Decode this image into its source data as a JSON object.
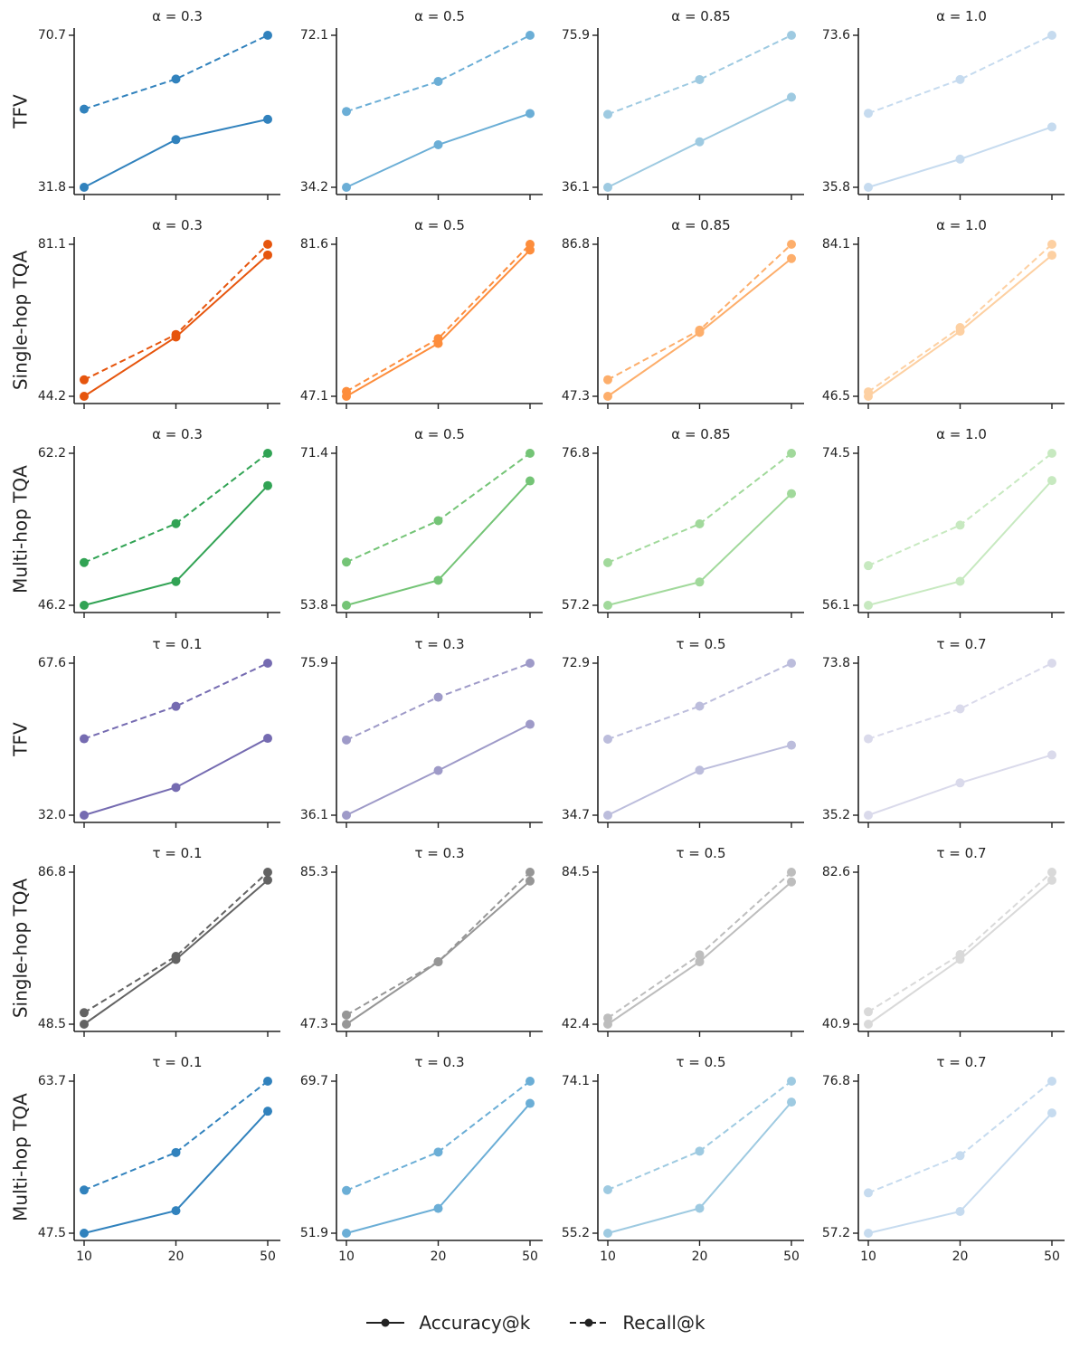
{
  "chart_data": {
    "type": "line",
    "layout": "6x4 grid of small multiples",
    "x_categories": [
      "10",
      "20",
      "50"
    ],
    "series_names": [
      "Accuracy@k",
      "Recall@k"
    ],
    "legend": {
      "position": "bottom-center",
      "items": [
        {
          "label": "Accuracy@k",
          "style": "solid"
        },
        {
          "label": "Recall@k",
          "style": "dashed"
        }
      ]
    },
    "rows": [
      {
        "label": "TFV",
        "param": "alpha",
        "panels": [
          {
            "title": "α = 0.3",
            "color": "#3182bd",
            "ytick_min": "31.8",
            "ytick_max": "70.7",
            "ylim": [
              31.8,
              70.7
            ],
            "accuracy": [
              31.8,
              44.0,
              49.2
            ],
            "recall": [
              51.8,
              59.5,
              70.7
            ]
          },
          {
            "title": "α = 0.5",
            "color": "#6baed6",
            "ytick_min": "34.2",
            "ytick_max": "72.1",
            "ylim": [
              34.2,
              72.1
            ],
            "accuracy": [
              34.2,
              44.8,
              52.6
            ],
            "recall": [
              53.1,
              60.6,
              72.1
            ]
          },
          {
            "title": "α = 0.85",
            "color": "#9ecae1",
            "ytick_min": "36.1",
            "ytick_max": "75.9",
            "ylim": [
              36.1,
              75.9
            ],
            "accuracy": [
              36.1,
              48.0,
              59.7
            ],
            "recall": [
              55.2,
              64.3,
              75.9
            ]
          },
          {
            "title": "α = 1.0",
            "color": "#c6dbef",
            "ytick_min": "35.8",
            "ytick_max": "73.6",
            "ylim": [
              35.8,
              73.6
            ],
            "accuracy": [
              35.8,
              42.8,
              50.8
            ],
            "recall": [
              54.2,
              62.6,
              73.6
            ]
          }
        ]
      },
      {
        "label": "Single-hop TQA",
        "param": "alpha",
        "panels": [
          {
            "title": "α = 0.3",
            "color": "#e6550d",
            "ytick_min": "44.2",
            "ytick_max": "81.1",
            "ylim": [
              44.2,
              81.1
            ],
            "accuracy": [
              44.2,
              58.6,
              78.5
            ],
            "recall": [
              48.2,
              59.2,
              81.1
            ]
          },
          {
            "title": "α = 0.5",
            "color": "#fd8d3c",
            "ytick_min": "47.1",
            "ytick_max": "81.6",
            "ylim": [
              47.1,
              81.6
            ],
            "accuracy": [
              47.1,
              59.1,
              80.3
            ],
            "recall": [
              48.2,
              60.2,
              81.6
            ]
          },
          {
            "title": "α = 0.85",
            "color": "#fdae6b",
            "ytick_min": "47.3",
            "ytick_max": "86.8",
            "ylim": [
              47.3,
              86.8
            ],
            "accuracy": [
              47.3,
              63.9,
              83.1
            ],
            "recall": [
              51.6,
              64.5,
              86.8
            ]
          },
          {
            "title": "α = 1.0",
            "color": "#fdd0a2",
            "ytick_min": "46.5",
            "ytick_max": "84.1",
            "ylim": [
              46.5,
              84.1
            ],
            "accuracy": [
              46.5,
              62.6,
              81.4
            ],
            "recall": [
              47.6,
              63.5,
              84.1
            ]
          }
        ]
      },
      {
        "label": "Multi-hop TQA",
        "param": "alpha",
        "panels": [
          {
            "title": "α = 0.3",
            "color": "#31a354",
            "ytick_min": "46.2",
            "ytick_max": "62.2",
            "ylim": [
              46.2,
              62.2
            ],
            "accuracy": [
              46.2,
              48.7,
              58.8
            ],
            "recall": [
              50.7,
              54.8,
              62.2
            ]
          },
          {
            "title": "α = 0.5",
            "color": "#74c476",
            "ytick_min": "53.8",
            "ytick_max": "71.4",
            "ylim": [
              53.8,
              71.4
            ],
            "accuracy": [
              53.8,
              56.7,
              68.2
            ],
            "recall": [
              58.8,
              63.6,
              71.4
            ]
          },
          {
            "title": "α = 0.85",
            "color": "#a1d99b",
            "ytick_min": "57.2",
            "ytick_max": "76.8",
            "ylim": [
              57.2,
              76.8
            ],
            "accuracy": [
              57.2,
              60.2,
              71.6
            ],
            "recall": [
              62.7,
              67.7,
              76.8
            ]
          },
          {
            "title": "α = 1.0",
            "color": "#c7e9c0",
            "ytick_min": "56.1",
            "ytick_max": "74.5",
            "ylim": [
              56.1,
              74.5
            ],
            "accuracy": [
              56.1,
              59.0,
              71.2
            ],
            "recall": [
              60.9,
              65.8,
              74.5
            ]
          }
        ]
      },
      {
        "label": "TFV",
        "param": "tau",
        "panels": [
          {
            "title": "τ = 0.1",
            "color": "#756bb1",
            "ytick_min": "32.0",
            "ytick_max": "67.6",
            "ylim": [
              32.0,
              67.6
            ],
            "accuracy": [
              32.0,
              38.5,
              50.0
            ],
            "recall": [
              49.9,
              57.5,
              67.6
            ]
          },
          {
            "title": "τ = 0.3",
            "color": "#9e9ac8",
            "ytick_min": "36.1",
            "ytick_max": "75.9",
            "ylim": [
              36.1,
              75.9
            ],
            "accuracy": [
              36.1,
              47.8,
              59.9
            ],
            "recall": [
              55.8,
              67.0,
              75.9
            ]
          },
          {
            "title": "τ = 0.5",
            "color": "#bcbddc",
            "ytick_min": "34.7",
            "ytick_max": "72.9",
            "ylim": [
              34.7,
              72.9
            ],
            "accuracy": [
              34.7,
              46.0,
              52.3
            ],
            "recall": [
              53.8,
              62.1,
              72.9
            ]
          },
          {
            "title": "τ = 0.7",
            "color": "#dadaeb",
            "ytick_min": "35.2",
            "ytick_max": "73.8",
            "ylim": [
              35.2,
              73.8
            ],
            "accuracy": [
              35.2,
              43.4,
              50.5
            ],
            "recall": [
              54.6,
              62.2,
              73.8
            ]
          }
        ]
      },
      {
        "label": "Single-hop TQA",
        "param": "tau",
        "panels": [
          {
            "title": "τ = 0.1",
            "color": "#636363",
            "ytick_min": "48.5",
            "ytick_max": "86.8",
            "ylim": [
              48.5,
              86.8
            ],
            "accuracy": [
              48.5,
              64.8,
              84.8
            ],
            "recall": [
              51.4,
              65.6,
              86.8
            ]
          },
          {
            "title": "τ = 0.3",
            "color": "#969696",
            "ytick_min": "47.3",
            "ytick_max": "85.3",
            "ylim": [
              47.3,
              85.3
            ],
            "accuracy": [
              47.3,
              62.9,
              83.1
            ],
            "recall": [
              49.6,
              62.9,
              85.3
            ]
          },
          {
            "title": "τ = 0.5",
            "color": "#bdbdbd",
            "ytick_min": "42.4",
            "ytick_max": "84.5",
            "ylim": [
              42.4,
              84.5
            ],
            "accuracy": [
              42.4,
              59.7,
              81.8
            ],
            "recall": [
              44.1,
              61.6,
              84.5
            ]
          },
          {
            "title": "τ = 0.7",
            "color": "#d9d9d9",
            "ytick_min": "40.9",
            "ytick_max": "82.6",
            "ylim": [
              40.9,
              82.6
            ],
            "accuracy": [
              40.9,
              58.7,
              80.4
            ],
            "recall": [
              44.3,
              60.0,
              82.6
            ]
          }
        ]
      },
      {
        "label": "Multi-hop TQA",
        "param": "tau",
        "panels": [
          {
            "title": "τ = 0.1",
            "color": "#3182bd",
            "ytick_min": "47.5",
            "ytick_max": "63.7",
            "ylim": [
              47.5,
              63.7
            ],
            "accuracy": [
              47.5,
              49.9,
              60.5
            ],
            "recall": [
              52.1,
              56.1,
              63.7
            ]
          },
          {
            "title": "τ = 0.3",
            "color": "#6baed6",
            "ytick_min": "51.9",
            "ytick_max": "69.7",
            "ylim": [
              51.9,
              69.7
            ],
            "accuracy": [
              51.9,
              54.8,
              67.1
            ],
            "recall": [
              56.9,
              61.4,
              69.7
            ]
          },
          {
            "title": "τ = 0.5",
            "color": "#9ecae1",
            "ytick_min": "55.2",
            "ytick_max": "74.1",
            "ylim": [
              55.2,
              74.1
            ],
            "accuracy": [
              55.2,
              58.3,
              71.5
            ],
            "recall": [
              60.6,
              65.4,
              74.1
            ]
          },
          {
            "title": "τ = 0.7",
            "color": "#c6dbef",
            "ytick_min": "57.2",
            "ytick_max": "76.8",
            "ylim": [
              57.2,
              76.8
            ],
            "accuracy": [
              57.2,
              60.0,
              72.7
            ],
            "recall": [
              62.4,
              67.2,
              76.8
            ]
          }
        ]
      }
    ]
  }
}
